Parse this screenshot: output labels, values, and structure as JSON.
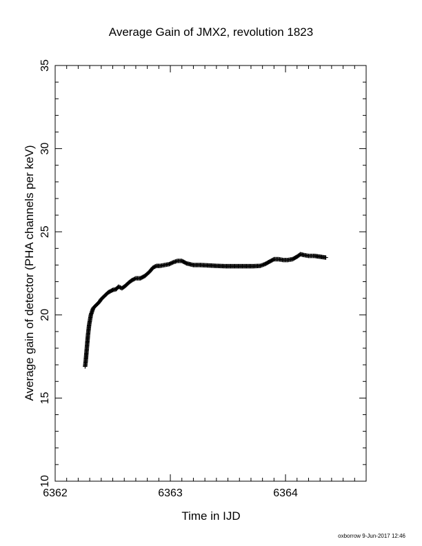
{
  "chart_data": {
    "type": "scatter",
    "title": "Average Gain of JMX2, revolution 1823",
    "xlabel": "Time in IJD",
    "ylabel": "Average gain of detector (PHA channels per keV)",
    "xlim": [
      6362,
      6364.7
    ],
    "ylim": [
      10,
      35
    ],
    "x_ticks": [
      "6362",
      "6363",
      "6364"
    ],
    "y_ticks": [
      "10",
      "15",
      "20",
      "25",
      "30",
      "35"
    ],
    "marker": "plus",
    "grid": false,
    "series": [
      {
        "color": "#000000",
        "points": [
          [
            6362.26,
            16.9
          ],
          [
            6362.265,
            17.2
          ],
          [
            6362.27,
            17.6
          ],
          [
            6362.275,
            18.0
          ],
          [
            6362.28,
            18.4
          ],
          [
            6362.285,
            18.8
          ],
          [
            6362.29,
            19.1
          ],
          [
            6362.295,
            19.4
          ],
          [
            6362.3,
            19.6
          ],
          [
            6362.305,
            19.8
          ],
          [
            6362.31,
            20.0
          ],
          [
            6362.32,
            20.2
          ],
          [
            6362.33,
            20.4
          ],
          [
            6362.35,
            20.55
          ],
          [
            6362.38,
            20.75
          ],
          [
            6362.4,
            20.95
          ],
          [
            6362.43,
            21.15
          ],
          [
            6362.46,
            21.35
          ],
          [
            6362.5,
            21.5
          ],
          [
            6362.53,
            21.55
          ],
          [
            6362.55,
            21.7
          ],
          [
            6362.58,
            21.6
          ],
          [
            6362.61,
            21.75
          ],
          [
            6362.64,
            21.95
          ],
          [
            6362.67,
            22.1
          ],
          [
            6362.7,
            22.2
          ],
          [
            6362.74,
            22.2
          ],
          [
            6362.78,
            22.35
          ],
          [
            6362.82,
            22.6
          ],
          [
            6362.85,
            22.85
          ],
          [
            6362.88,
            22.95
          ],
          [
            6362.91,
            22.95
          ],
          [
            6362.95,
            23.0
          ],
          [
            6362.99,
            23.05
          ],
          [
            6363.02,
            23.15
          ],
          [
            6363.06,
            23.25
          ],
          [
            6363.1,
            23.25
          ],
          [
            6363.14,
            23.1
          ],
          [
            6363.2,
            23.0
          ],
          [
            6363.26,
            23.0
          ],
          [
            6363.32,
            22.98
          ],
          [
            6363.4,
            22.95
          ],
          [
            6363.48,
            22.93
          ],
          [
            6363.56,
            22.93
          ],
          [
            6363.64,
            22.93
          ],
          [
            6363.72,
            22.93
          ],
          [
            6363.78,
            22.95
          ],
          [
            6363.82,
            23.05
          ],
          [
            6363.86,
            23.2
          ],
          [
            6363.9,
            23.35
          ],
          [
            6363.94,
            23.35
          ],
          [
            6363.98,
            23.3
          ],
          [
            6364.02,
            23.3
          ],
          [
            6364.06,
            23.35
          ],
          [
            6364.1,
            23.5
          ],
          [
            6364.13,
            23.65
          ],
          [
            6364.16,
            23.6
          ],
          [
            6364.2,
            23.55
          ],
          [
            6364.25,
            23.55
          ],
          [
            6364.3,
            23.5
          ],
          [
            6364.35,
            23.45
          ]
        ]
      }
    ]
  },
  "footer": "oxborrow 9-Jun-2017 12:46"
}
